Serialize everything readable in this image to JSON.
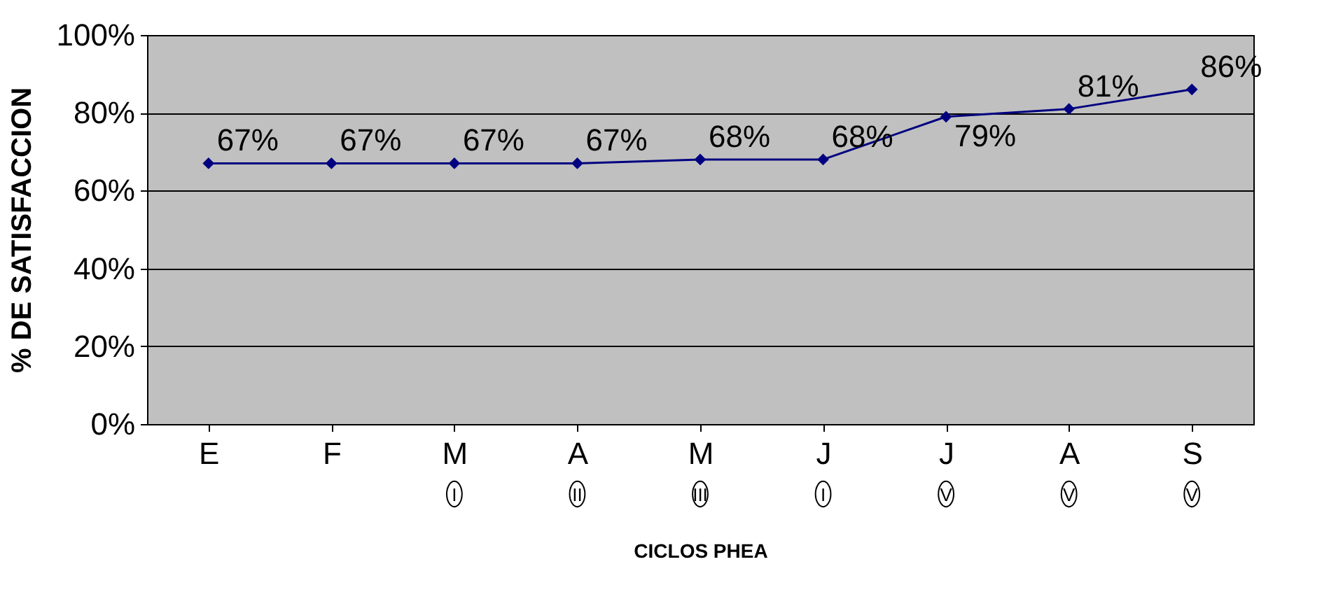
{
  "chart_data": {
    "type": "line",
    "xlabel": "CICLOS PHEA",
    "ylabel": "% DE SATISFACCION",
    "categories": [
      "E",
      "F",
      "M",
      "A",
      "M",
      "J",
      "J",
      "A",
      "S"
    ],
    "series": [
      {
        "color": "#000080",
        "values": [
          67,
          67,
          67,
          67,
          68,
          68,
          79,
          81,
          86
        ],
        "value_labels": [
          "67%",
          "67%",
          "67%",
          "67%",
          "68%",
          "68%",
          "79%",
          "81%",
          "86%"
        ]
      }
    ],
    "ylim": [
      0,
      100
    ],
    "yticks": [
      {
        "value": 0,
        "label": "0%"
      },
      {
        "value": 20,
        "label": "20%"
      },
      {
        "value": 40,
        "label": "40%"
      },
      {
        "value": 60,
        "label": "60%"
      },
      {
        "value": 80,
        "label": "80%"
      },
      {
        "value": 100,
        "label": "100%"
      }
    ],
    "grid": "y",
    "legend": false,
    "marker": "diamond",
    "line_style": "solid",
    "annotations": [
      "I",
      "II",
      "III",
      "I",
      "V",
      "V",
      "V"
    ]
  }
}
